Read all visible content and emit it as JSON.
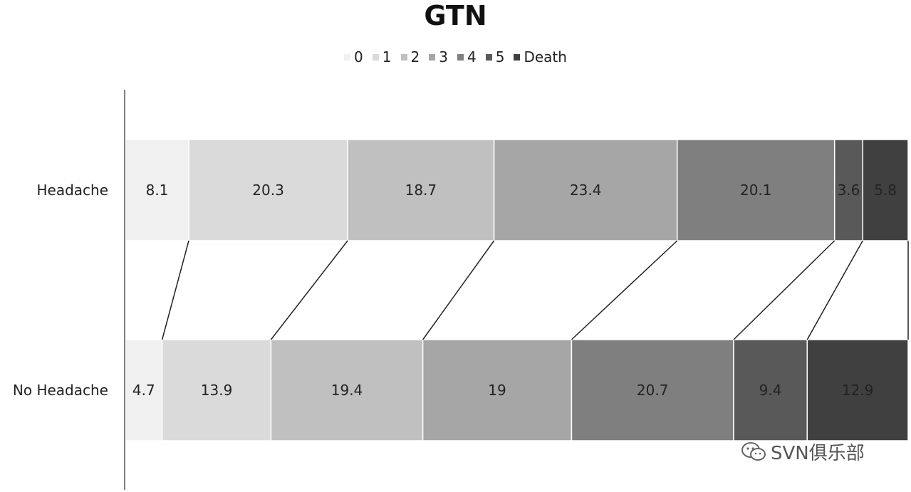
{
  "chart_data": {
    "type": "bar",
    "stacked": true,
    "orientation": "horizontal",
    "title": "GTN",
    "legend_position": "top",
    "categories": [
      "Headache",
      "No Headache"
    ],
    "series": [
      {
        "name": "0",
        "values": [
          8.1,
          4.7
        ],
        "color": "#f0f0f0"
      },
      {
        "name": "1",
        "values": [
          20.3,
          13.9
        ],
        "color": "#dadada"
      },
      {
        "name": "2",
        "values": [
          18.7,
          19.4
        ],
        "color": "#c0c0c0"
      },
      {
        "name": "3",
        "values": [
          23.4,
          19
        ],
        "color": "#a6a6a6"
      },
      {
        "name": "4",
        "values": [
          20.1,
          20.7
        ],
        "color": "#7f7f7f"
      },
      {
        "name": "5",
        "values": [
          3.6,
          9.4
        ],
        "color": "#595959"
      },
      {
        "name": "Death",
        "values": [
          5.8,
          12.9
        ],
        "color": "#404040"
      }
    ],
    "xlim": [
      0,
      100
    ],
    "grid": false
  },
  "watermark": {
    "text": "SVN俱乐部",
    "icon": "wechat-icon"
  }
}
